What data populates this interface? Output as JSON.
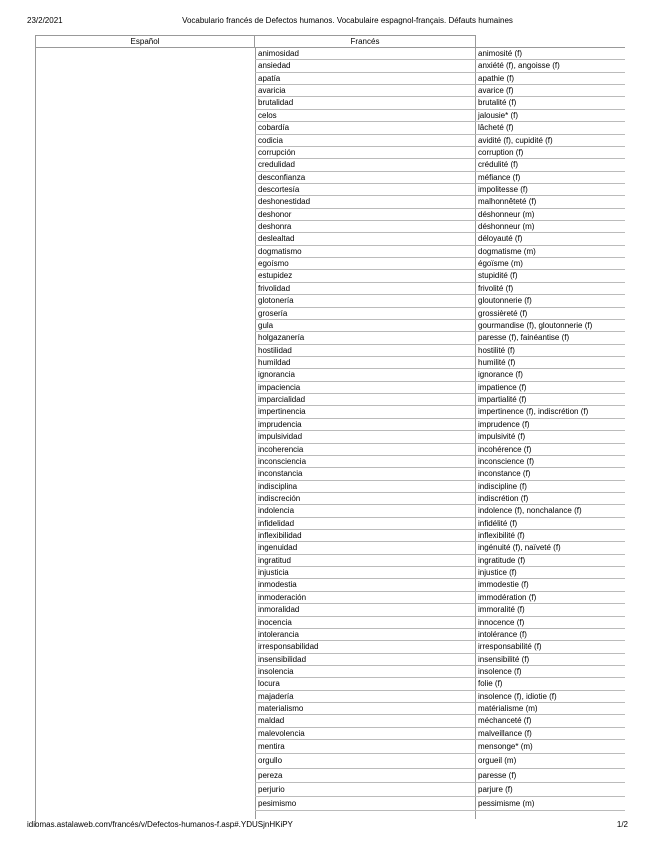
{
  "header": {
    "date": "23/2/2021",
    "title": "Vocabulario francés de Defectos humanos. Vocabulaire espagnol-français. Défauts humaines"
  },
  "table": {
    "headers": [
      "Español",
      "Francés"
    ],
    "rows": [
      [
        "animosidad",
        "animosité (f)"
      ],
      [
        "ansiedad",
        "anxiété (f), angoisse (f)"
      ],
      [
        "apatía",
        "apathie (f)"
      ],
      [
        "avaricia",
        "avarice (f)"
      ],
      [
        "brutalidad",
        "brutalité (f)"
      ],
      [
        "celos",
        "jalousie* (f)"
      ],
      [
        "cobardía",
        "lâcheté (f)"
      ],
      [
        "codicia",
        "avidité (f), cupidité (f)"
      ],
      [
        "corrupción",
        "corruption (f)"
      ],
      [
        "credulidad",
        "crédulité (f)"
      ],
      [
        "desconfianza",
        "méfiance (f)"
      ],
      [
        "descortesía",
        "impolitesse (f)"
      ],
      [
        "deshonestidad",
        "malhonnêteté (f)"
      ],
      [
        "deshonor",
        "déshonneur (m)"
      ],
      [
        "deshonra",
        "déshonneur (m)"
      ],
      [
        "deslealtad",
        "déloyauté (f)"
      ],
      [
        "dogmatismo",
        "dogmatisme (m)"
      ],
      [
        "egoísmo",
        "égoïsme (m)"
      ],
      [
        "estupidez",
        "stupidité (f)"
      ],
      [
        "frivolidad",
        "frivolité (f)"
      ],
      [
        "glotonería",
        "gloutonnerie (f)"
      ],
      [
        "grosería",
        "grossièreté (f)"
      ],
      [
        "gula",
        "gourmandise (f), gloutonnerie (f)"
      ],
      [
        "holgazanería",
        "paresse (f), fainéantise (f)"
      ],
      [
        "hostilidad",
        "hostilité (f)"
      ],
      [
        "humildad",
        "humilité (f)"
      ],
      [
        "ignorancia",
        "ignorance (f)"
      ],
      [
        "impaciencia",
        "impatience (f)"
      ],
      [
        "imparcialidad",
        "impartialité (f)"
      ],
      [
        "impertinencia",
        "impertinence (f), indiscrétion (f)"
      ],
      [
        "imprudencia",
        "imprudence (f)"
      ],
      [
        "impulsividad",
        "impulsivité (f)"
      ],
      [
        "incoherencia",
        "incohérence (f)"
      ],
      [
        "inconsciencia",
        "inconscience (f)"
      ],
      [
        "inconstancia",
        "inconstance (f)"
      ],
      [
        "indisciplina",
        "indiscipline (f)"
      ],
      [
        "indiscreción",
        "indiscrétion (f)"
      ],
      [
        "indolencia",
        "indolence (f), nonchalance (f)"
      ],
      [
        "infidelidad",
        "infidélité (f)"
      ],
      [
        "inflexibilidad",
        "inflexibilité (f)"
      ],
      [
        "ingenuidad",
        "ingénuité (f), naïveté (f)"
      ],
      [
        "ingratitud",
        "ingratitude (f)"
      ],
      [
        "injusticia",
        "injustice (f)"
      ],
      [
        "inmodestia",
        "immodestie (f)"
      ],
      [
        "inmoderación",
        "immodération (f)"
      ],
      [
        "inmoralidad",
        "immoralité (f)"
      ],
      [
        "inocencia",
        "innocence (f)"
      ],
      [
        "intolerancia",
        "intolérance (f)"
      ],
      [
        "irresponsabilidad",
        "irresponsabilité (f)"
      ],
      [
        "insensibilidad",
        "insensibilité (f)"
      ],
      [
        "insolencia",
        "insolence (f)"
      ],
      [
        "locura",
        "folie (f)"
      ],
      [
        "majadería",
        "insolence (f), idiotie (f)"
      ],
      [
        "materialismo",
        "matérialisme (m)"
      ],
      [
        "maldad",
        "méchanceté (f)"
      ],
      [
        "malevolencia",
        "malveillance (f)"
      ],
      [
        "mentira",
        "mensonge* (m)"
      ],
      [
        "orgullo",
        "orgueil (m)"
      ],
      [
        "pereza",
        "paresse (f)"
      ],
      [
        "perjurio",
        "parjure (f)"
      ],
      [
        "pesimismo",
        "pessimisme (m)"
      ]
    ]
  },
  "footer": {
    "url": "idiomas.astalaweb.com/francés/v/Defectos-humanos-f.asp#.YDUSjnHKiPY",
    "page": "1/2"
  }
}
